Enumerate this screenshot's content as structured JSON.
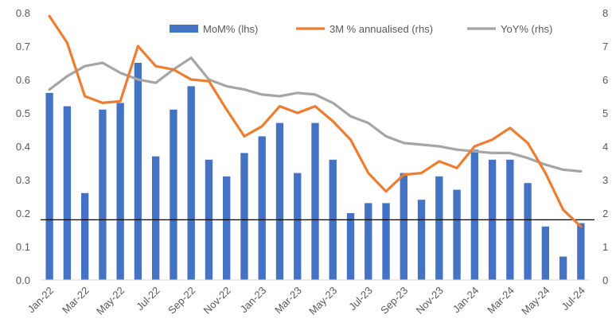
{
  "chart_data": {
    "type": "bar",
    "title": "",
    "x_tick_labels": [
      "Jan-22",
      "Mar-22",
      "May-22",
      "Jul-22",
      "Sep-22",
      "Nov-22",
      "Jan-23",
      "Mar-23",
      "May-23",
      "Jul-23",
      "Sep-23",
      "Nov-23",
      "Jan-24",
      "Mar-24",
      "May-24",
      "Jul-24"
    ],
    "categories": [
      "Jan-22",
      "Feb-22",
      "Mar-22",
      "Apr-22",
      "May-22",
      "Jun-22",
      "Jul-22",
      "Aug-22",
      "Sep-22",
      "Oct-22",
      "Nov-22",
      "Dec-22",
      "Jan-23",
      "Feb-23",
      "Mar-23",
      "Apr-23",
      "May-23",
      "Jun-23",
      "Jul-23",
      "Aug-23",
      "Sep-23",
      "Oct-23",
      "Nov-23",
      "Dec-23",
      "Jan-24",
      "Feb-24",
      "Mar-24",
      "Apr-24",
      "May-24",
      "Jun-24",
      "Jul-24"
    ],
    "left_axis": {
      "min": 0.0,
      "max": 0.8,
      "ticks": [
        "0.0",
        "0.1",
        "0.2",
        "0.3",
        "0.4",
        "0.5",
        "0.6",
        "0.7",
        "0.8"
      ]
    },
    "right_axis": {
      "min": 0,
      "max": 8,
      "ticks": [
        "0",
        "1",
        "2",
        "3",
        "4",
        "5",
        "6",
        "7",
        "8"
      ]
    },
    "reference_line": {
      "axis": "left",
      "value": 0.18
    },
    "legend_position": "top",
    "series": [
      {
        "name": "MoM% (lhs)",
        "kind": "bar",
        "axis": "left",
        "color": "#4472C4",
        "values": [
          0.56,
          0.52,
          0.26,
          0.51,
          0.53,
          0.65,
          0.37,
          0.51,
          0.58,
          0.36,
          0.31,
          0.38,
          0.43,
          0.47,
          0.32,
          0.47,
          0.36,
          0.2,
          0.23,
          0.23,
          0.32,
          0.24,
          0.31,
          0.27,
          0.39,
          0.36,
          0.36,
          0.29,
          0.16,
          0.07,
          0.17
        ]
      },
      {
        "name": "3M % annualised (rhs)",
        "kind": "line",
        "axis": "right",
        "color": "#ED7D31",
        "values": [
          7.9,
          7.1,
          5.5,
          5.3,
          5.35,
          7.0,
          6.4,
          6.3,
          6.0,
          5.95,
          5.1,
          4.3,
          4.6,
          5.2,
          5.0,
          5.2,
          4.75,
          4.2,
          3.2,
          2.65,
          3.15,
          3.2,
          3.55,
          3.35,
          4.0,
          4.2,
          4.55,
          4.1,
          3.2,
          2.1,
          1.6
        ]
      },
      {
        "name": "YoY% (rhs)",
        "kind": "line",
        "axis": "right",
        "color": "#A5A5A5",
        "values": [
          5.7,
          6.1,
          6.4,
          6.5,
          6.2,
          6.0,
          5.9,
          6.3,
          6.65,
          6.0,
          5.8,
          5.7,
          5.55,
          5.5,
          5.6,
          5.55,
          5.3,
          4.9,
          4.7,
          4.3,
          4.1,
          4.05,
          4.0,
          3.9,
          3.85,
          3.8,
          3.8,
          3.65,
          3.45,
          3.3,
          3.25
        ]
      }
    ]
  }
}
